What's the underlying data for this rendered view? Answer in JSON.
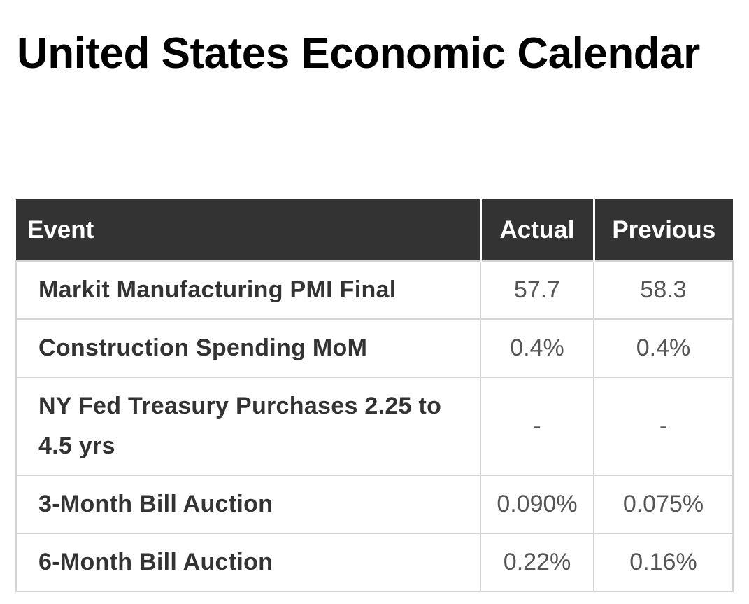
{
  "page": {
    "title": "United States Economic Calendar"
  },
  "table": {
    "headers": {
      "event": "Event",
      "actual": "Actual",
      "previous": "Previous"
    },
    "rows": [
      {
        "event": "Markit Manufacturing PMI Final",
        "actual": "57.7",
        "previous": "58.3"
      },
      {
        "event": "Construction Spending MoM",
        "actual": "0.4%",
        "previous": "0.4%"
      },
      {
        "event": "NY Fed Treasury Purchases 2.25 to 4.5 yrs",
        "actual": "-",
        "previous": "-"
      },
      {
        "event": "3-Month Bill Auction",
        "actual": "0.090%",
        "previous": "0.075%"
      },
      {
        "event": "6-Month Bill Auction",
        "actual": "0.22%",
        "previous": "0.16%"
      }
    ]
  },
  "colors": {
    "header_background": "#333333",
    "header_text": "#ffffff",
    "event_text": "#333333",
    "value_text": "#555555",
    "cell_border": "#d4d4d4"
  }
}
